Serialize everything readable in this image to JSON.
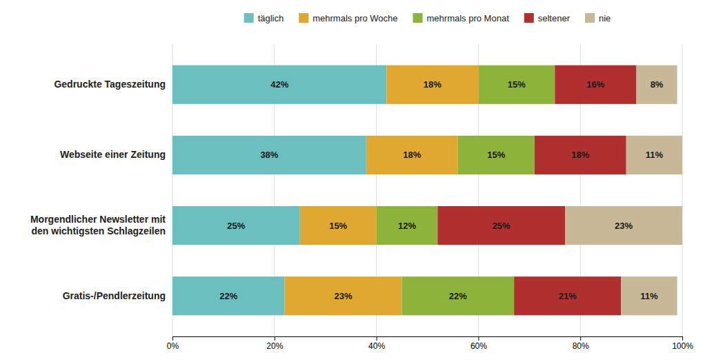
{
  "chart_data": {
    "type": "bar",
    "orientation": "horizontal",
    "stacked": true,
    "categories": [
      "Gedruckte Tageszeitung",
      "Webseite einer Zeitung",
      "Morgendlicher Newsletter mit\nden wichtigsten Schlagzeilen",
      "Gratis-/Pendlerzeitung"
    ],
    "series": [
      {
        "name": "täglich",
        "color": "#6BBFBF",
        "values": [
          42,
          38,
          25,
          22
        ],
        "value_labels": [
          "42%",
          "38%",
          "25%",
          "22%"
        ]
      },
      {
        "name": "mehrmals pro Woche",
        "color": "#E0A830",
        "values": [
          18,
          18,
          15,
          23
        ],
        "value_labels": [
          "18%",
          "18%",
          "15%",
          "23%"
        ]
      },
      {
        "name": "mehrmals pro Monat",
        "color": "#8DB33A",
        "values": [
          15,
          15,
          12,
          22
        ],
        "value_labels": [
          "15%",
          "15%",
          "12%",
          "22%"
        ]
      },
      {
        "name": "seltener",
        "color": "#B03030",
        "values": [
          16,
          18,
          25,
          21
        ],
        "value_labels": [
          "16%",
          "18%",
          "25%",
          "21%"
        ]
      },
      {
        "name": "nie",
        "color": "#C8B898",
        "values": [
          8,
          11,
          23,
          11
        ],
        "value_labels": [
          "8%",
          "11%",
          "23%",
          "11%"
        ]
      }
    ],
    "xlim": [
      0,
      100
    ],
    "xticks": [
      {
        "value": 0,
        "label": "0%"
      },
      {
        "value": 20,
        "label": "20%"
      },
      {
        "value": 40,
        "label": "40%"
      },
      {
        "value": 60,
        "label": "60%"
      },
      {
        "value": 80,
        "label": "80%"
      },
      {
        "value": 100,
        "label": "100%"
      }
    ],
    "grid": true,
    "legend": "top",
    "data_labels": true
  }
}
